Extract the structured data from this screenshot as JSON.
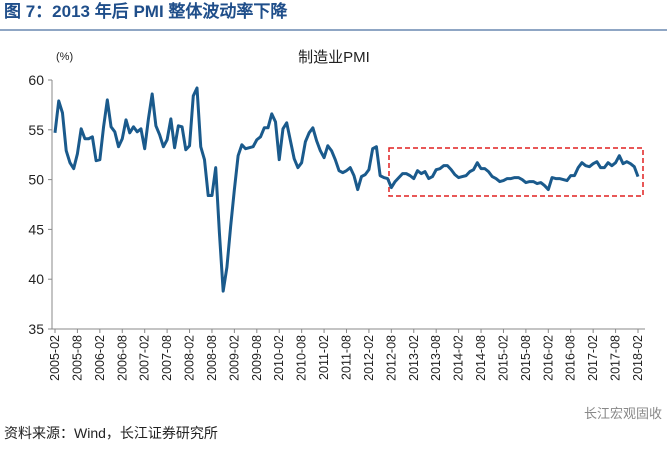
{
  "title": "图 7：2013 年后 PMI 整体波动率下降",
  "source": "资料来源：Wind，长江证券研究所",
  "watermark": "长江宏观固收",
  "chart_data": {
    "type": "line",
    "title": "制造业PMI",
    "y_unit": "(%)",
    "color": "#1a5a8c",
    "categories": [
      "2005-02",
      null,
      null,
      null,
      null,
      null,
      "2005-08",
      null,
      null,
      null,
      null,
      null,
      "2006-02",
      null,
      null,
      null,
      null,
      null,
      "2006-08",
      null,
      null,
      null,
      null,
      null,
      "2007-02",
      null,
      null,
      null,
      null,
      null,
      "2007-08",
      null,
      null,
      null,
      null,
      null,
      "2008-02",
      null,
      null,
      null,
      null,
      null,
      "2008-08",
      null,
      null,
      null,
      null,
      null,
      "2009-02",
      null,
      null,
      null,
      null,
      null,
      "2009-08",
      null,
      null,
      null,
      null,
      null,
      "2010-02",
      null,
      null,
      null,
      null,
      null,
      "2010-08",
      null,
      null,
      null,
      null,
      null,
      "2011-02",
      null,
      null,
      null,
      null,
      null,
      "2011-08",
      null,
      null,
      null,
      null,
      null,
      "2012-02",
      null,
      null,
      null,
      null,
      null,
      "2012-08",
      null,
      null,
      null,
      null,
      null,
      "2013-02",
      null,
      null,
      null,
      null,
      null,
      "2013-08",
      null,
      null,
      null,
      null,
      null,
      "2014-02",
      null,
      null,
      null,
      null,
      null,
      "2014-08",
      null,
      null,
      null,
      null,
      null,
      "2015-02",
      null,
      null,
      null,
      null,
      null,
      "2015-08",
      null,
      null,
      null,
      null,
      null,
      "2016-02",
      null,
      null,
      null,
      null,
      null,
      "2016-08",
      null,
      null,
      null,
      null,
      null,
      "2017-02",
      null,
      null,
      null,
      null,
      null,
      "2017-08",
      null,
      null,
      null,
      null,
      null,
      "2018-02"
    ],
    "values": [
      54.7,
      57.9,
      56.7,
      52.9,
      51.7,
      51.1,
      52.6,
      55.1,
      54.1,
      54.1,
      54.3,
      51.9,
      52.0,
      55.3,
      58.0,
      55.3,
      54.8,
      53.3,
      54.1,
      56.0,
      54.7,
      55.3,
      54.8,
      55.1,
      53.1,
      56.1,
      58.6,
      55.4,
      54.5,
      53.3,
      54.0,
      56.1,
      53.2,
      55.4,
      55.3,
      53.0,
      53.4,
      58.4,
      59.2,
      53.3,
      52.0,
      48.4,
      48.4,
      51.2,
      44.6,
      38.8,
      41.2,
      45.3,
      49.0,
      52.4,
      53.5,
      53.1,
      53.2,
      53.3,
      54.0,
      54.3,
      55.2,
      55.2,
      56.6,
      55.8,
      52.0,
      55.1,
      55.7,
      53.9,
      52.1,
      51.2,
      51.7,
      53.8,
      54.7,
      55.2,
      53.9,
      52.9,
      52.2,
      53.4,
      52.9,
      52.0,
      50.9,
      50.7,
      50.9,
      51.2,
      50.4,
      49.0,
      50.3,
      50.5,
      51.0,
      53.1,
      53.3,
      50.4,
      50.2,
      50.1,
      49.2,
      49.8,
      50.2,
      50.6,
      50.6,
      50.4,
      50.1,
      50.9,
      50.6,
      50.8,
      50.1,
      50.3,
      51.0,
      51.1,
      51.4,
      51.4,
      51.0,
      50.5,
      50.2,
      50.3,
      50.4,
      50.8,
      51.0,
      51.7,
      51.1,
      51.1,
      50.8,
      50.3,
      50.1,
      49.8,
      49.9,
      50.1,
      50.1,
      50.2,
      50.2,
      50.0,
      49.7,
      49.8,
      49.8,
      49.6,
      49.7,
      49.4,
      49.0,
      50.2,
      50.1,
      50.1,
      50.0,
      49.9,
      50.4,
      50.4,
      51.2,
      51.7,
      51.4,
      51.3,
      51.6,
      51.8,
      51.2,
      51.2,
      51.7,
      51.4,
      51.7,
      52.4,
      51.6,
      51.8,
      51.6,
      51.3,
      50.3
    ],
    "ylim": [
      35,
      60
    ],
    "yticks": [
      35,
      40,
      45,
      50,
      55,
      60
    ]
  }
}
